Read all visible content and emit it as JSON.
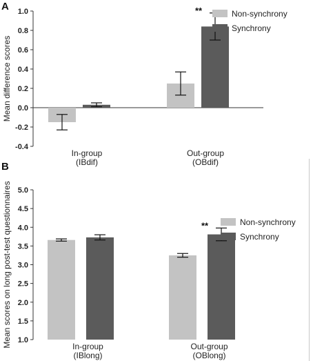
{
  "chart_data": [
    {
      "type": "bar",
      "panel_label": "A",
      "title": "",
      "ylabel": "Mean difference scores",
      "ylim": [
        -0.4,
        1.0
      ],
      "yticks": [
        "-0.4",
        "-0.2",
        "0.0",
        "0.2",
        "0.4",
        "0.6",
        "0.8",
        "1.0"
      ],
      "ytick_values": [
        -0.4,
        -0.2,
        0.0,
        0.2,
        0.4,
        0.6,
        0.8,
        1.0
      ],
      "categories": [
        "In-group\n(IBdif)",
        "Out-group\n(OBdif)"
      ],
      "series": [
        {
          "name": "Non-synchrony",
          "color": "#c3c3c3",
          "values": [
            -0.15,
            0.25
          ],
          "errors": [
            0.08,
            0.12
          ]
        },
        {
          "name": "Synchrony",
          "color": "#5b5b5b",
          "values": [
            0.03,
            0.84
          ],
          "errors": [
            0.02,
            0.14
          ]
        }
      ],
      "annotations": [
        {
          "text": "**",
          "category_index": 1,
          "series_index": 1
        }
      ],
      "legend_position": "top-right",
      "grid": false
    },
    {
      "type": "bar",
      "panel_label": "B",
      "title": "",
      "ylabel": "Mean scores on long post-test questionnaires",
      "ylim": [
        1.0,
        5.0
      ],
      "yticks": [
        "1.0",
        "1.5",
        "2.0",
        "2.5",
        "3.0",
        "3.5",
        "4.0",
        "4.5",
        "5.0"
      ],
      "ytick_values": [
        1.0,
        1.5,
        2.0,
        2.5,
        3.0,
        3.5,
        4.0,
        4.5,
        5.0
      ],
      "categories": [
        "In-group\n(IBlong)",
        "Out-group\n(OBlong)"
      ],
      "series": [
        {
          "name": "Non-synchrony",
          "color": "#c3c3c3",
          "values": [
            3.66,
            3.25
          ],
          "errors": [
            0.03,
            0.05
          ]
        },
        {
          "name": "Synchrony",
          "color": "#5b5b5b",
          "values": [
            3.73,
            3.81
          ],
          "errors": [
            0.07,
            0.17
          ]
        }
      ],
      "annotations": [
        {
          "text": "**",
          "category_index": 1,
          "series_index": 1
        }
      ],
      "legend_position": "top-right",
      "grid": false
    }
  ]
}
